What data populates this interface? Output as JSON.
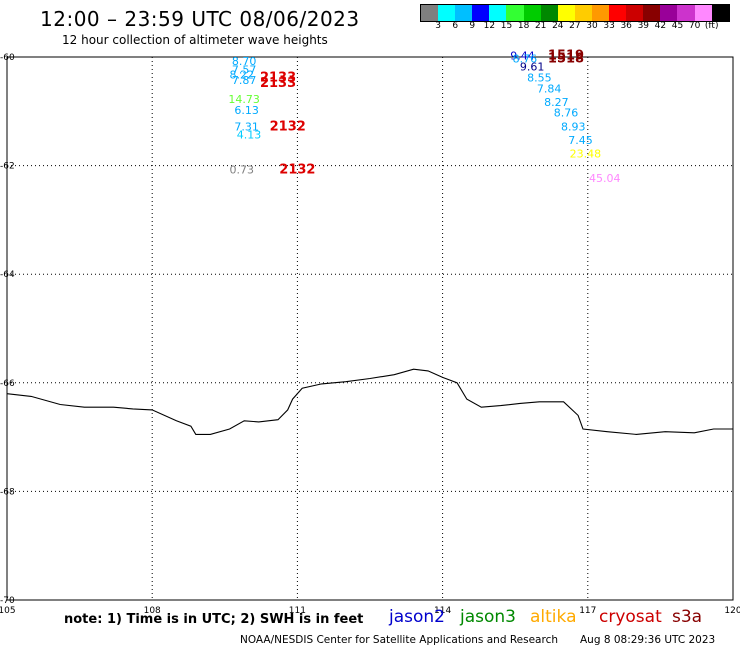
{
  "header": {
    "title": "12:00 – 23:59 UTC 08/06/2023",
    "subtitle": "12 hour collection of altimeter wave heights"
  },
  "colorbar": {
    "colors": [
      "#7f7f7f",
      "#00ffff",
      "#00bfff",
      "#0000ff",
      "#00ffff",
      "#33ff33",
      "#00cc00",
      "#008800",
      "#ffff00",
      "#ffcc00",
      "#ff9900",
      "#ff0000",
      "#cc0000",
      "#880000",
      "#990099",
      "#cc33cc",
      "#ff88ff",
      "#000000"
    ],
    "labels": [
      "3",
      "6",
      "9",
      "12",
      "15",
      "18",
      "21",
      "24",
      "27",
      "30",
      "33",
      "36",
      "39",
      "42",
      "45",
      "70",
      "(ft)"
    ]
  },
  "map_data": {
    "lon_range": [
      105,
      120
    ],
    "lat_range": [
      -70,
      -60
    ],
    "x_ticks": [
      "105",
      "108",
      "111",
      "114",
      "117",
      "120"
    ],
    "y_ticks": [
      "-60",
      "-62",
      "-64",
      "-66",
      "-68",
      "-70"
    ],
    "observations": [
      {
        "lon": 109.9,
        "lat": -60.15,
        "value": "8.70",
        "color": "#00aaff"
      },
      {
        "lon": 109.9,
        "lat": -60.3,
        "value": "7.57",
        "color": "#00aaff"
      },
      {
        "lon": 109.85,
        "lat": -60.4,
        "value": "8.22",
        "color": "#00aaff"
      },
      {
        "lon": 109.9,
        "lat": -60.5,
        "value": "7.87",
        "color": "#00aaff"
      },
      {
        "lon": 110.6,
        "lat": -60.45,
        "value": "2133",
        "color": "#dd0000"
      },
      {
        "lon": 110.6,
        "lat": -60.55,
        "value": "2133",
        "color": "#dd0000"
      },
      {
        "lon": 109.9,
        "lat": -60.85,
        "value": "14.73",
        "color": "#66ff33"
      },
      {
        "lon": 109.95,
        "lat": -61.05,
        "value": "6.13",
        "color": "#00aaff"
      },
      {
        "lon": 109.95,
        "lat": -61.35,
        "value": "7.31",
        "color": "#00aaff"
      },
      {
        "lon": 110.8,
        "lat": -61.35,
        "value": "2132",
        "color": "#dd0000"
      },
      {
        "lon": 110.0,
        "lat": -61.5,
        "value": "4.13",
        "color": "#00ccff"
      },
      {
        "lon": 109.85,
        "lat": -62.15,
        "value": "0.73",
        "color": "#808080"
      },
      {
        "lon": 111.0,
        "lat": -62.15,
        "value": "2132",
        "color": "#dd0000"
      },
      {
        "lon": 115.65,
        "lat": -60.05,
        "value": "9.44",
        "color": "#0000cc"
      },
      {
        "lon": 115.7,
        "lat": -60.1,
        "value": "8.76",
        "color": "#00aaff"
      },
      {
        "lon": 116.55,
        "lat": -60.05,
        "value": "1519",
        "color": "#880000"
      },
      {
        "lon": 116.55,
        "lat": -60.1,
        "value": "1518",
        "color": "#880000"
      },
      {
        "lon": 115.85,
        "lat": -60.25,
        "value": "9.61",
        "color": "#000088"
      },
      {
        "lon": 116.0,
        "lat": -60.45,
        "value": "8.55",
        "color": "#00aaff"
      },
      {
        "lon": 116.2,
        "lat": -60.65,
        "value": "7.84",
        "color": "#00aaff"
      },
      {
        "lon": 116.35,
        "lat": -60.9,
        "value": "8.27",
        "color": "#00aaff"
      },
      {
        "lon": 116.55,
        "lat": -61.1,
        "value": "8.76",
        "color": "#00aaff"
      },
      {
        "lon": 116.7,
        "lat": -61.35,
        "value": "8.93",
        "color": "#00aaff"
      },
      {
        "lon": 116.85,
        "lat": -61.6,
        "value": "7.45",
        "color": "#00aaff"
      },
      {
        "lon": 116.95,
        "lat": -61.85,
        "value": "23.48",
        "color": "#ffff00"
      },
      {
        "lon": 117.35,
        "lat": -62.3,
        "value": "45.04",
        "color": "#ff88ff"
      }
    ],
    "coastline": [
      [
        105.0,
        -66.2
      ],
      [
        105.5,
        -66.25
      ],
      [
        106.1,
        -66.4
      ],
      [
        106.6,
        -66.45
      ],
      [
        107.2,
        -66.45
      ],
      [
        107.6,
        -66.48
      ],
      [
        108.0,
        -66.5
      ],
      [
        108.5,
        -66.7
      ],
      [
        108.8,
        -66.8
      ],
      [
        108.9,
        -66.95
      ],
      [
        109.2,
        -66.95
      ],
      [
        109.6,
        -66.85
      ],
      [
        109.9,
        -66.7
      ],
      [
        110.2,
        -66.72
      ],
      [
        110.6,
        -66.68
      ],
      [
        110.8,
        -66.5
      ],
      [
        110.9,
        -66.3
      ],
      [
        111.1,
        -66.1
      ],
      [
        111.5,
        -66.02
      ],
      [
        112.0,
        -65.98
      ],
      [
        112.5,
        -65.92
      ],
      [
        113.0,
        -65.85
      ],
      [
        113.4,
        -65.75
      ],
      [
        113.7,
        -65.78
      ],
      [
        114.0,
        -65.9
      ],
      [
        114.3,
        -66.0
      ],
      [
        114.5,
        -66.3
      ],
      [
        114.8,
        -66.45
      ],
      [
        115.2,
        -66.42
      ],
      [
        115.6,
        -66.38
      ],
      [
        116.0,
        -66.35
      ],
      [
        116.5,
        -66.35
      ],
      [
        116.8,
        -66.6
      ],
      [
        116.9,
        -66.85
      ],
      [
        117.4,
        -66.9
      ],
      [
        118.0,
        -66.95
      ],
      [
        118.6,
        -66.9
      ],
      [
        119.2,
        -66.92
      ],
      [
        119.6,
        -66.85
      ],
      [
        120.0,
        -66.85
      ]
    ]
  },
  "footer": {
    "note": "note: 1) Time is in UTC; 2) SWH is in feet",
    "legend": [
      {
        "label": "jason2",
        "color": "#0000cc"
      },
      {
        "label": "jason3",
        "color": "#008800"
      },
      {
        "label": "altika",
        "color": "#ffaa00"
      },
      {
        "label": "cryosat",
        "color": "#cc0000"
      },
      {
        "label": "s3a",
        "color": "#880000"
      }
    ],
    "credit": "NOAA/NESDIS Center for Satellite Applications and Research",
    "timestamp": "Aug  8 08:29:36 UTC 2023"
  }
}
